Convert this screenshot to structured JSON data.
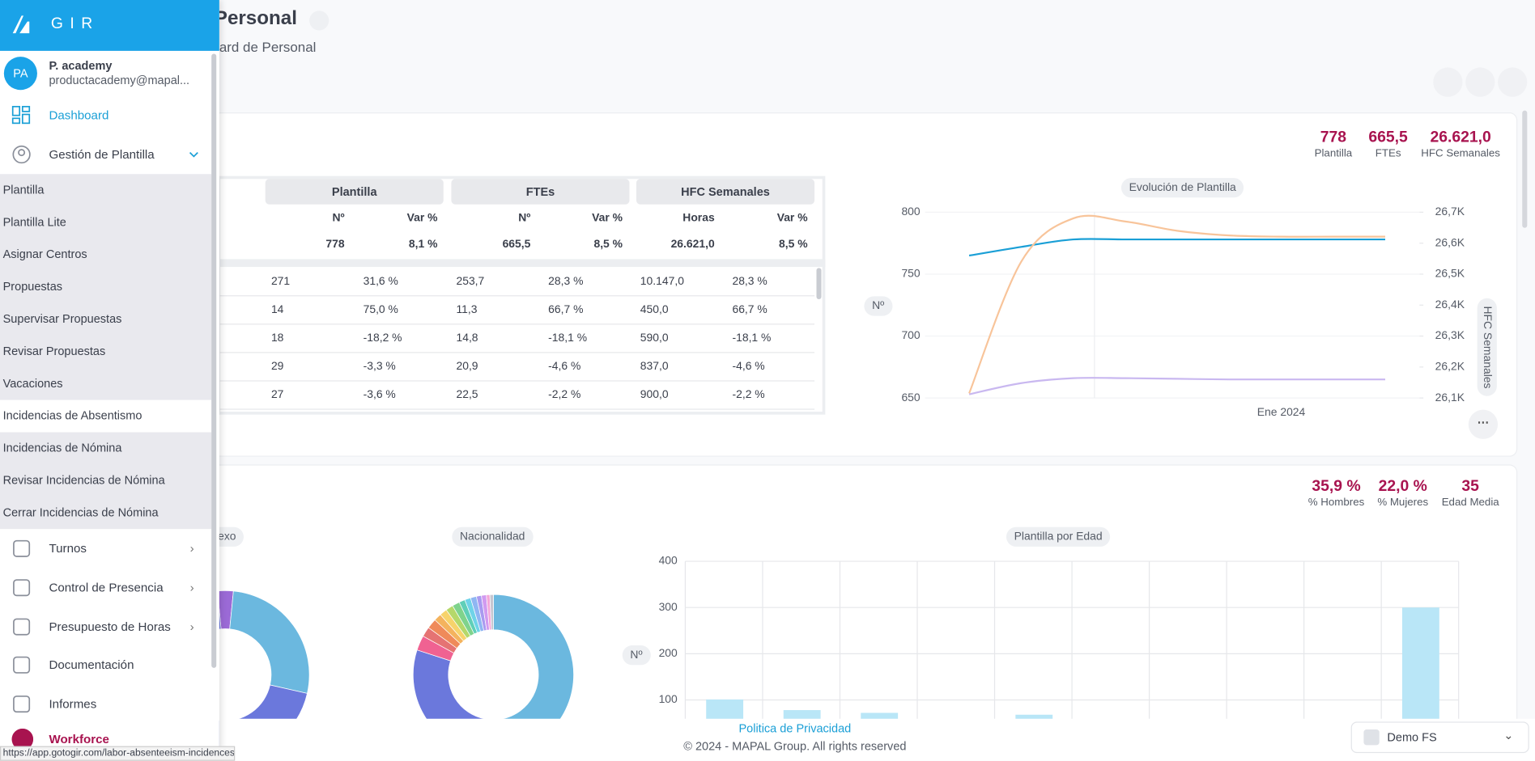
{
  "sidebar": {
    "logo": "GIR",
    "user": {
      "initials": "PA",
      "name": "P. academy",
      "email": "productacademy@mapal..."
    },
    "menu": [
      "Dashboard",
      "Gestión de Plantilla"
    ],
    "submenu": [
      "Plantilla",
      "Plantilla Lite",
      "Asignar Centros",
      "Propuestas",
      "Supervisar Propuestas",
      "Revisar Propuestas",
      "Vacaciones",
      "Incidencias de Absentismo",
      "Incidencias de Nómina",
      "Revisar Incidencias de Nómina",
      "Cerrar Incidencias de Nómina"
    ],
    "menu_more": [
      "Turnos",
      "Control de Presencia",
      "Presupuesto de Horas",
      "Documentación",
      "Informes",
      "Workforce"
    ]
  },
  "header": {
    "title": "Personal",
    "subtitle": "ard de Personal"
  },
  "summary_kpis": [
    {
      "value": "778",
      "label": "Plantilla"
    },
    {
      "value": "665,5",
      "label": "FTEs"
    },
    {
      "value": "26.621,0",
      "label": "HFC Semanales"
    }
  ],
  "table": {
    "groups": [
      "Plantilla",
      "FTEs",
      "HFC Semanales"
    ],
    "columns": [
      "Nº",
      "Var %",
      "Nº",
      "Var %",
      "Horas",
      "Var %"
    ],
    "total": [
      "778",
      "8,1 %",
      "665,5",
      "8,5 %",
      "26.621,0",
      "8,5 %"
    ],
    "rows": [
      [
        "271",
        "31,6 %",
        "253,7",
        "28,3 %",
        "10.147,0",
        "28,3 %"
      ],
      [
        "14",
        "75,0 %",
        "11,3",
        "66,7 %",
        "450,0",
        "66,7 %"
      ],
      [
        "18",
        "-18,2 %",
        "14,8",
        "-18,1 %",
        "590,0",
        "-18,1 %"
      ],
      [
        "29",
        "-3,3 %",
        "20,9",
        "-4,6 %",
        "837,0",
        "-4,6 %"
      ],
      [
        "27",
        "-3,6 %",
        "22,5",
        "-2,2 %",
        "900,0",
        "-2,2 %"
      ]
    ]
  },
  "evolution_chart": {
    "type": "line",
    "title": "Evolución de Plantilla",
    "ylabel": "Nº",
    "y2label": "HFC Semanales",
    "x": [
      null,
      null,
      null,
      null,
      null,
      null,
      "Ene 2024",
      null,
      null
    ],
    "series": [
      {
        "color": "#1a9fd6",
        "values": [
          765,
          772,
          778,
          778,
          778,
          778,
          778,
          778,
          778
        ]
      },
      {
        "color": "#c9b8f0",
        "values": [
          653,
          662,
          666,
          666,
          665.5,
          665,
          665,
          665,
          665
        ]
      },
      {
        "color": "#f8c49a",
        "axis": "y2",
        "values": [
          26115,
          26540,
          26680,
          26670,
          26640,
          26625,
          26621,
          26621,
          26621
        ]
      }
    ],
    "ylim": [
      650,
      800
    ],
    "yticks": [
      650,
      700,
      750,
      800
    ],
    "y2lim": [
      26100,
      26700
    ],
    "y2ticks": [
      {
        "value": 26100,
        "label": "26,1K"
      },
      {
        "value": 26200,
        "label": "26,2K"
      },
      {
        "value": 26300,
        "label": "26,3K"
      },
      {
        "value": 26400,
        "label": "26,4K"
      },
      {
        "value": 26500,
        "label": "26,5K"
      },
      {
        "value": 26600,
        "label": "26,6K"
      },
      {
        "value": 26700,
        "label": "26,7K"
      }
    ]
  },
  "demographics_kpis": [
    {
      "value": "35,9 %",
      "label": "% Hombres"
    },
    {
      "value": "22,0 %",
      "label": "% Mujeres"
    },
    {
      "value": "35",
      "label": "Edad Media"
    }
  ],
  "sex_chart": {
    "type": "pie",
    "title": "Sexo",
    "values": [
      3,
      27,
      70
    ],
    "colors": [
      "#9b6ad6",
      "#6bb8df",
      "#6b78dc"
    ]
  },
  "nationality_chart": {
    "type": "pie",
    "title": "Nacionalidad",
    "values": [
      53,
      27,
      3,
      2,
      2,
      1.5,
      1.5,
      1.5,
      1.5,
      1.2,
      1.2,
      1.2,
      1,
      1,
      0.7,
      0.7
    ],
    "colors": [
      "#6bb8df",
      "#6b78dc",
      "#f06292",
      "#e57373",
      "#ef8a5a",
      "#f4b35e",
      "#f7d36b",
      "#b5d86a",
      "#7fd38c",
      "#5fcfb8",
      "#6fd3e8",
      "#8fb6f2",
      "#a99af0",
      "#d19af0",
      "#f4a6d8",
      "#c6c6d0"
    ]
  },
  "age_chart": {
    "type": "bar",
    "title": "Plantilla por Edad",
    "ylabel": "Nº",
    "categories": [
      null,
      null,
      null,
      null,
      null,
      null,
      null,
      null,
      null,
      null
    ],
    "values": [
      101,
      78,
      72,
      0,
      68,
      0,
      0,
      0,
      0,
      300
    ],
    "color": "#b9e6f7",
    "ylim": [
      0,
      400
    ],
    "yticks": [
      100,
      200,
      300,
      400
    ],
    "grid": true
  },
  "footer": {
    "privacy": "Politica de Privacidad",
    "copyright": "© 2024 - MAPAL Group. All rights reserved",
    "company": "Demo FS",
    "status_url": "https://app.gotogir.com/labor-absenteeism-incidences"
  }
}
